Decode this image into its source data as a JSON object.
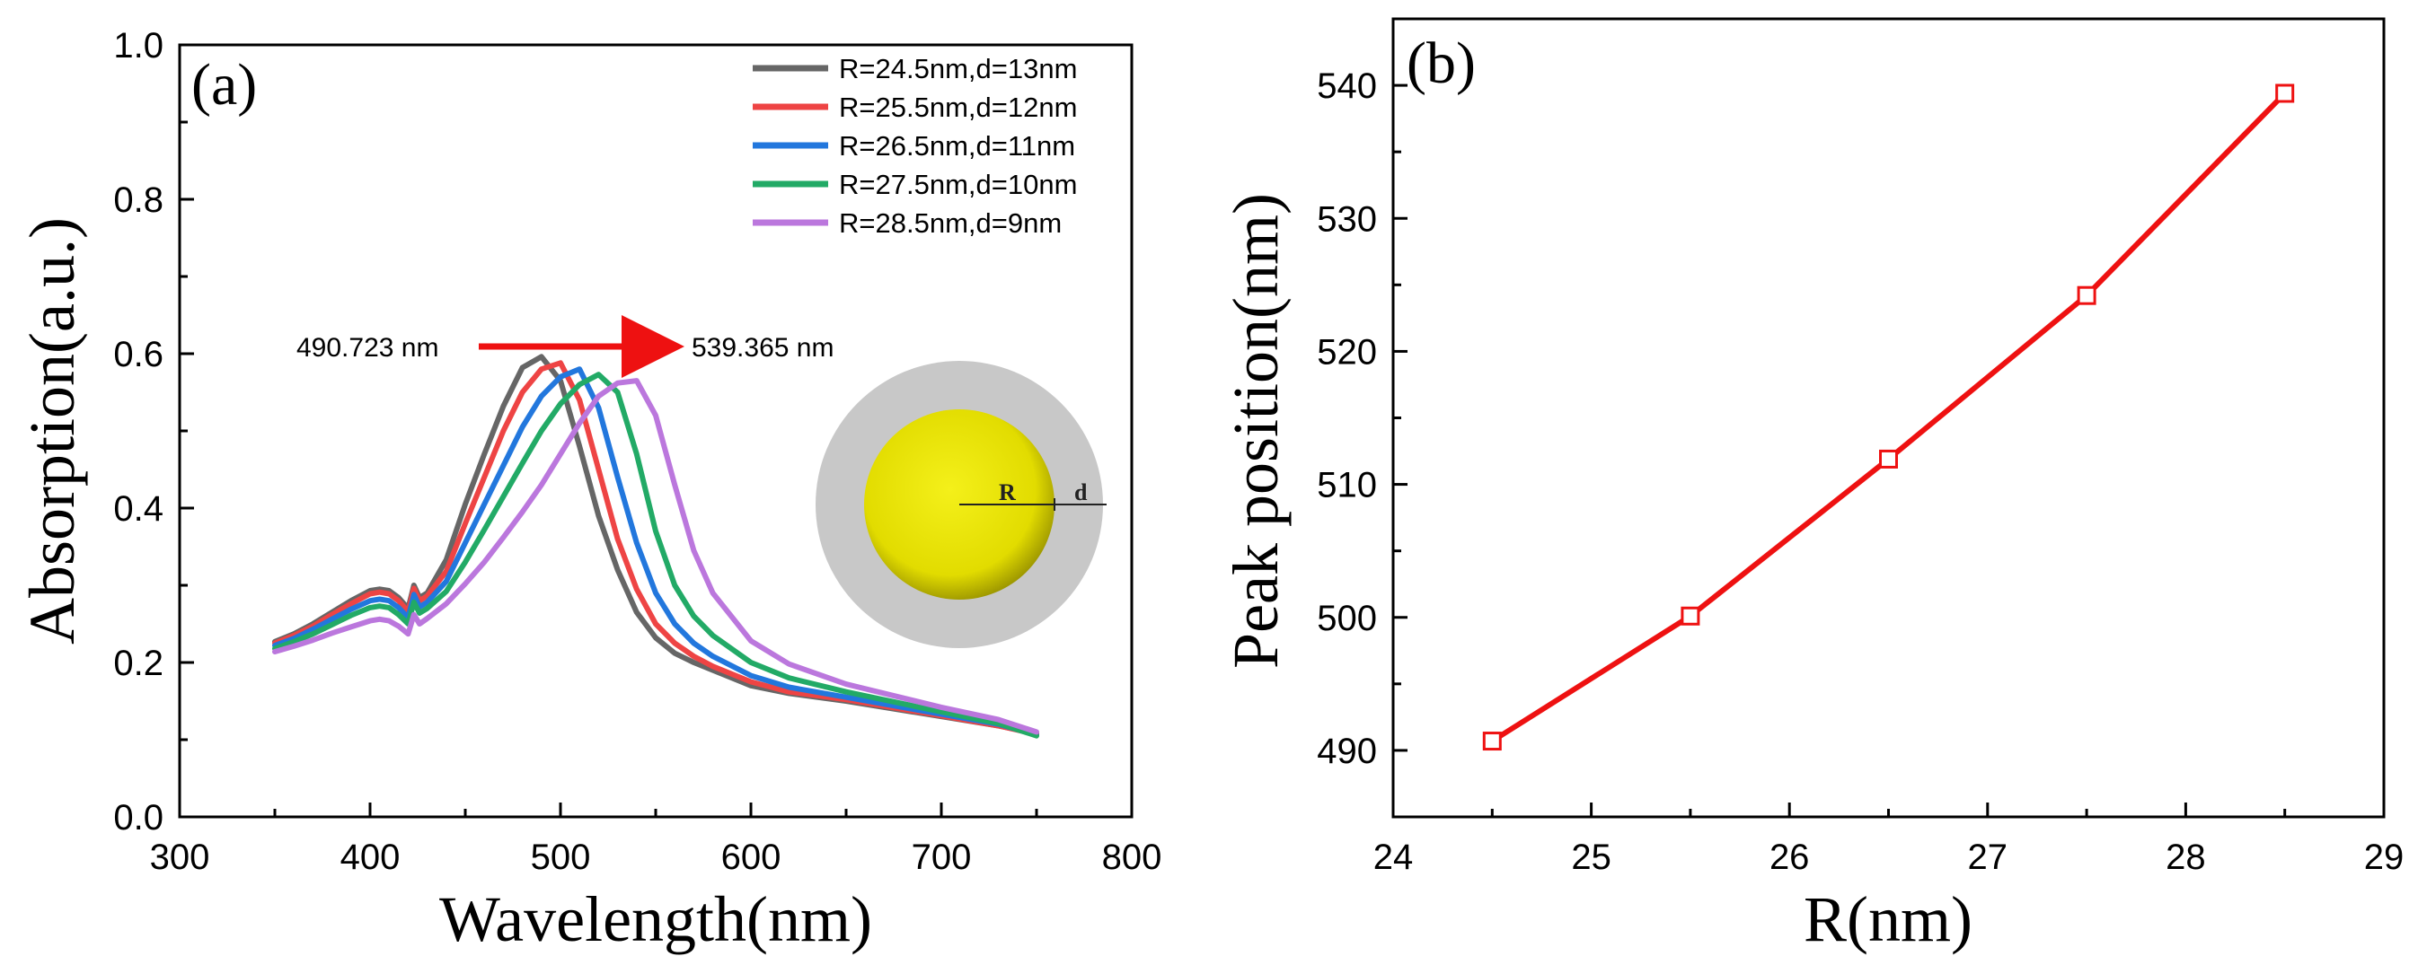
{
  "chart_data": [
    {
      "panel": "(a)",
      "type": "line",
      "xlabel": "Wavelength(nm)",
      "ylabel": "Absorption(a.u.)",
      "xlim": [
        300,
        800
      ],
      "ylim": [
        0.0,
        1.0
      ],
      "xticks": [
        "300",
        "400",
        "500",
        "600",
        "700",
        "800"
      ],
      "yticks": [
        "0.0",
        "0.2",
        "0.4",
        "0.6",
        "0.8",
        "1.0"
      ],
      "x": [
        350,
        360,
        370,
        380,
        390,
        400,
        405,
        410,
        415,
        420,
        423,
        426,
        430,
        440,
        450,
        460,
        470,
        480,
        490,
        500,
        510,
        520,
        530,
        540,
        550,
        560,
        570,
        580,
        600,
        620,
        650,
        700,
        730,
        750
      ],
      "series": [
        {
          "name": "R=24.5nm,d=13nm",
          "color": "#666666",
          "values": [
            0.227,
            0.237,
            0.25,
            0.265,
            0.28,
            0.293,
            0.295,
            0.293,
            0.284,
            0.27,
            0.3,
            0.284,
            0.29,
            0.333,
            0.405,
            0.47,
            0.532,
            0.582,
            0.596,
            0.565,
            0.48,
            0.39,
            0.32,
            0.265,
            0.232,
            0.212,
            0.2,
            0.19,
            0.17,
            0.16,
            0.15,
            0.13,
            0.118,
            0.108
          ]
        },
        {
          "name": "R=25.5nm,d=12nm",
          "color": "#ee4444",
          "values": [
            0.225,
            0.235,
            0.247,
            0.262,
            0.276,
            0.289,
            0.291,
            0.289,
            0.28,
            0.266,
            0.296,
            0.28,
            0.286,
            0.318,
            0.38,
            0.44,
            0.5,
            0.55,
            0.58,
            0.588,
            0.54,
            0.45,
            0.36,
            0.295,
            0.25,
            0.225,
            0.208,
            0.195,
            0.175,
            0.162,
            0.152,
            0.131,
            0.118,
            0.107
          ]
        },
        {
          "name": "R=26.5nm,d=11nm",
          "color": "#2277dd",
          "values": [
            0.222,
            0.231,
            0.243,
            0.256,
            0.269,
            0.28,
            0.282,
            0.28,
            0.271,
            0.258,
            0.288,
            0.272,
            0.278,
            0.305,
            0.355,
            0.405,
            0.455,
            0.505,
            0.545,
            0.57,
            0.58,
            0.53,
            0.44,
            0.355,
            0.29,
            0.25,
            0.225,
            0.208,
            0.183,
            0.168,
            0.155,
            0.133,
            0.12,
            0.106
          ]
        },
        {
          "name": "R=27.5nm,d=10nm",
          "color": "#22aa66",
          "values": [
            0.218,
            0.227,
            0.237,
            0.249,
            0.261,
            0.271,
            0.273,
            0.271,
            0.262,
            0.25,
            0.278,
            0.264,
            0.27,
            0.292,
            0.33,
            0.372,
            0.415,
            0.458,
            0.5,
            0.535,
            0.56,
            0.573,
            0.55,
            0.47,
            0.37,
            0.3,
            0.26,
            0.235,
            0.2,
            0.18,
            0.162,
            0.136,
            0.121,
            0.105
          ]
        },
        {
          "name": "R=28.5nm,d=9nm",
          "color": "#bb77dd",
          "values": [
            0.214,
            0.221,
            0.229,
            0.238,
            0.246,
            0.254,
            0.256,
            0.254,
            0.247,
            0.237,
            0.262,
            0.25,
            0.257,
            0.276,
            0.302,
            0.33,
            0.362,
            0.395,
            0.43,
            0.47,
            0.51,
            0.545,
            0.562,
            0.565,
            0.52,
            0.43,
            0.345,
            0.29,
            0.228,
            0.198,
            0.172,
            0.142,
            0.126,
            0.11
          ]
        }
      ],
      "annotations": {
        "start_label": "490.723 nm",
        "end_label": "539.365 nm",
        "inset_r_label": "R",
        "inset_d_label": "d"
      },
      "legend_position": "top-right"
    },
    {
      "panel": "(b)",
      "type": "line",
      "xlabel": "R(nm)",
      "ylabel": "Peak position(nm)",
      "xlim": [
        24,
        29
      ],
      "ylim": [
        485,
        545
      ],
      "xticks": [
        "24",
        "25",
        "26",
        "27",
        "28",
        "29"
      ],
      "yticks": [
        "490",
        "500",
        "510",
        "520",
        "530",
        "540"
      ],
      "x": [
        24.5,
        25.5,
        26.5,
        27.5,
        28.5
      ],
      "values": [
        490.7,
        500.1,
        511.9,
        524.2,
        539.4
      ],
      "color": "#ee1111",
      "marker": "open-square"
    }
  ]
}
